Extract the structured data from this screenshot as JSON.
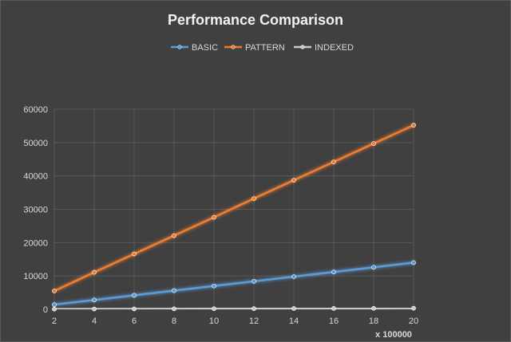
{
  "chart_data": {
    "type": "line",
    "title": "Performance Comparison",
    "x": [
      2,
      4,
      6,
      8,
      10,
      12,
      14,
      16,
      18,
      20
    ],
    "x_unit_label": "x 100000",
    "xlim": [
      2,
      20
    ],
    "ylim": [
      0,
      60000
    ],
    "y_ticks": [
      0,
      10000,
      20000,
      30000,
      40000,
      50000,
      60000
    ],
    "grid": true,
    "legend_position": "top",
    "series": [
      {
        "name": "BASIC",
        "color": "#5b9bd5",
        "values": [
          1400,
          2800,
          4200,
          5600,
          7000,
          8400,
          9800,
          11200,
          12600,
          14000
        ]
      },
      {
        "name": "PATTERN",
        "color": "#ed7d31",
        "values": [
          5500,
          11100,
          16600,
          22100,
          27600,
          33200,
          38700,
          44200,
          49700,
          55200
        ]
      },
      {
        "name": "INDEXED",
        "color": "#c9c9c9",
        "values": [
          60,
          90,
          120,
          150,
          180,
          210,
          240,
          270,
          300,
          330
        ]
      }
    ]
  }
}
